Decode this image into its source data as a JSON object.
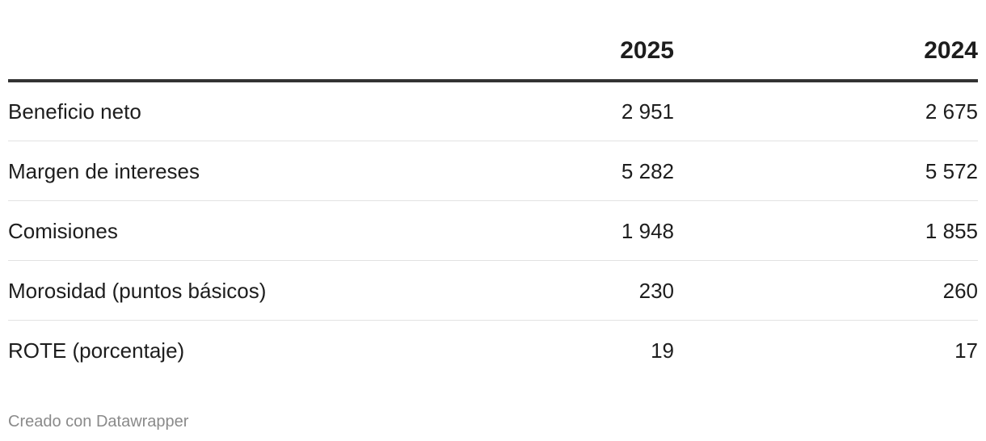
{
  "table": {
    "columns": [
      "2025",
      "2024"
    ],
    "rows": [
      [
        "Beneficio neto",
        "2 951",
        "2 675"
      ],
      [
        "Margen de intereses",
        "5 282",
        "5 572"
      ],
      [
        "Comisiones",
        "1 948",
        "1 855"
      ],
      [
        "Morosidad (puntos básicos)",
        "230",
        "260"
      ],
      [
        "ROTE (porcentaje)",
        "19",
        "17"
      ]
    ]
  },
  "footer": "Creado con Datawrapper"
}
